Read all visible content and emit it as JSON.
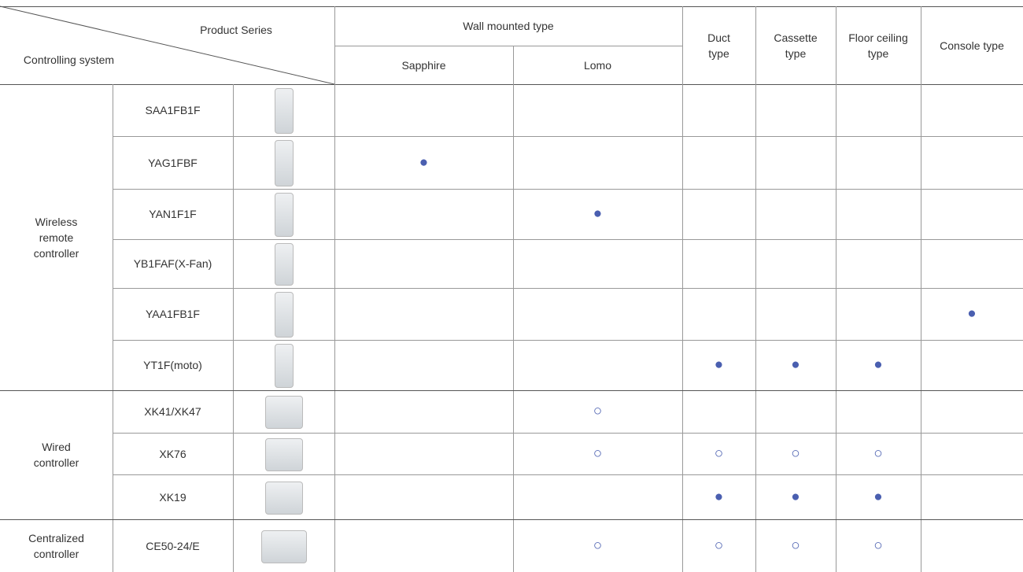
{
  "header": {
    "product_series": "Product Series",
    "controlling_system": "Controlling system",
    "wall_mounted": "Wall mounted type",
    "sapphire": "Sapphire",
    "lomo": "Lomo",
    "duct": "Duct type",
    "cassette": "Cassette type",
    "floor_ceiling": "Floor ceiling type",
    "console": "Console type"
  },
  "groups": [
    {
      "label": "Wireless remote controller",
      "rows": [
        {
          "model": "SAA1FB1F",
          "marks": [
            null,
            null,
            null,
            null,
            null,
            null
          ]
        },
        {
          "model": "YAG1FBF",
          "marks": [
            "●",
            null,
            null,
            null,
            null,
            null
          ]
        },
        {
          "model": "YAN1F1F",
          "marks": [
            null,
            "●",
            null,
            null,
            null,
            null
          ]
        },
        {
          "model": "YB1FAF(X-Fan)",
          "marks": [
            null,
            null,
            null,
            null,
            null,
            null
          ]
        },
        {
          "model": "YAA1FB1F",
          "marks": [
            null,
            null,
            null,
            null,
            null,
            "●"
          ]
        },
        {
          "model": "YT1F(moto)",
          "marks": [
            null,
            null,
            "●",
            "●",
            "●",
            null
          ]
        }
      ]
    },
    {
      "label": "Wired controller",
      "rows": [
        {
          "model": "XK41/XK47",
          "marks": [
            null,
            "○",
            null,
            null,
            null,
            null
          ]
        },
        {
          "model": "XK76",
          "marks": [
            null,
            "○",
            "○",
            "○",
            "○",
            null
          ]
        },
        {
          "model": "XK19",
          "marks": [
            null,
            null,
            "●",
            "●",
            "●",
            null
          ]
        }
      ]
    },
    {
      "label": "Centralized controller",
      "rows": [
        {
          "model": "CE50-24/E",
          "marks": [
            null,
            "○",
            "○",
            "○",
            "○",
            null
          ]
        }
      ]
    }
  ]
}
